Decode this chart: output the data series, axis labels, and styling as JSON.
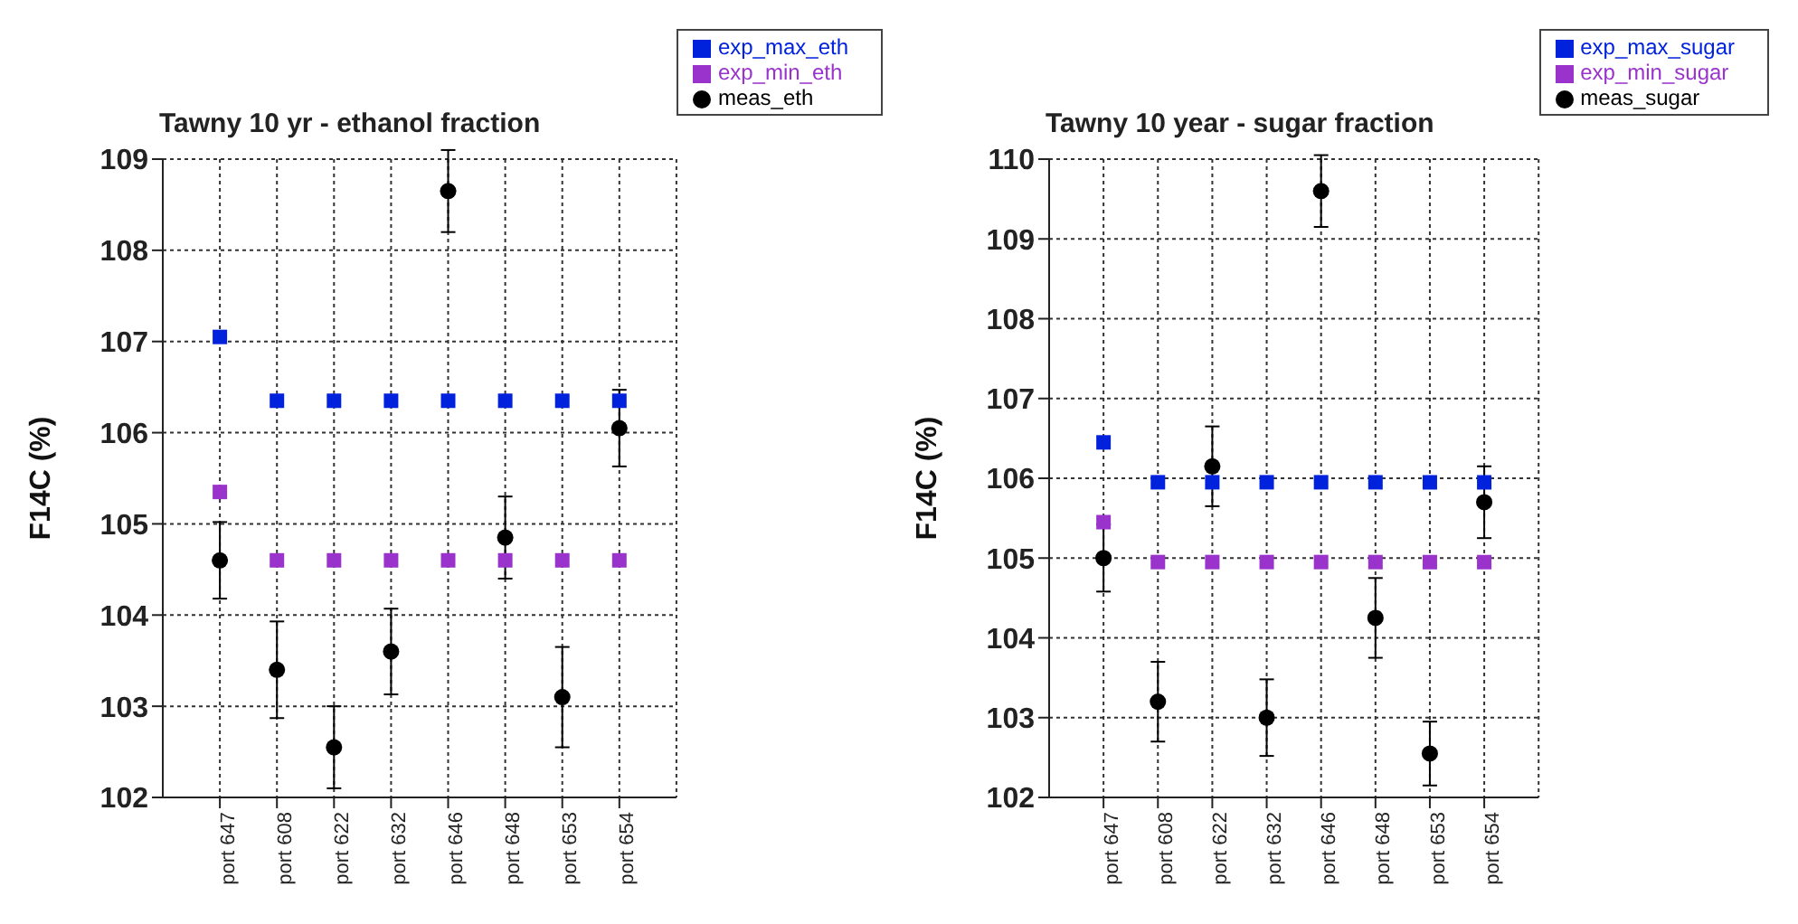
{
  "chart_data": [
    {
      "type": "scatter",
      "title": "Tawny 10 yr - ethanol fraction",
      "ylabel": "F14C (%)",
      "categories": [
        "port 647",
        "port 608",
        "port 622",
        "port 632",
        "port 646",
        "port 648",
        "port 653",
        "port 654"
      ],
      "series": [
        {
          "name": "meas_eth",
          "color": "#000000",
          "marker": "circle",
          "values": [
            104.6,
            103.4,
            102.55,
            103.6,
            108.65,
            104.85,
            103.1,
            106.05
          ],
          "errors": [
            0.42,
            0.53,
            0.45,
            0.47,
            0.45,
            0.45,
            0.55,
            0.42
          ]
        },
        {
          "name": "exp_max_eth",
          "color": "#0022dd",
          "marker": "square",
          "values": [
            107.05,
            106.35,
            106.35,
            106.35,
            106.35,
            106.35,
            106.35,
            106.35
          ]
        },
        {
          "name": "exp_min_eth",
          "color": "#9933cc",
          "marker": "square",
          "values": [
            105.35,
            104.6,
            104.6,
            104.6,
            104.6,
            104.6,
            104.6,
            104.6
          ]
        }
      ],
      "ylim": [
        102,
        109
      ],
      "yticks": [
        102,
        103,
        104,
        105,
        106,
        107,
        108,
        109
      ],
      "grid": true,
      "legend": "top right"
    },
    {
      "type": "scatter",
      "title": "Tawny 10 year - sugar fraction",
      "ylabel": "F14C (%)",
      "categories": [
        "port 647",
        "port 608",
        "port 622",
        "port 632",
        "port 646",
        "port 648",
        "port 653",
        "port 654"
      ],
      "series": [
        {
          "name": "meas_sugar",
          "color": "#000000",
          "marker": "circle",
          "values": [
            105.0,
            103.2,
            106.15,
            103.0,
            109.6,
            104.25,
            102.55,
            105.7
          ],
          "errors": [
            0.42,
            0.5,
            0.5,
            0.48,
            0.45,
            0.5,
            0.4,
            0.45
          ]
        },
        {
          "name": "exp_max_sugar",
          "color": "#0022dd",
          "marker": "square",
          "values": [
            106.45,
            105.95,
            105.95,
            105.95,
            105.95,
            105.95,
            105.95,
            105.95
          ]
        },
        {
          "name": "exp_min_sugar",
          "color": "#9933cc",
          "marker": "square",
          "values": [
            105.45,
            104.95,
            104.95,
            104.95,
            104.95,
            104.95,
            104.95,
            104.95
          ]
        }
      ],
      "ylim": [
        102,
        110
      ],
      "yticks": [
        102,
        103,
        104,
        105,
        106,
        107,
        108,
        109,
        110
      ],
      "grid": true,
      "legend": "top right"
    }
  ]
}
